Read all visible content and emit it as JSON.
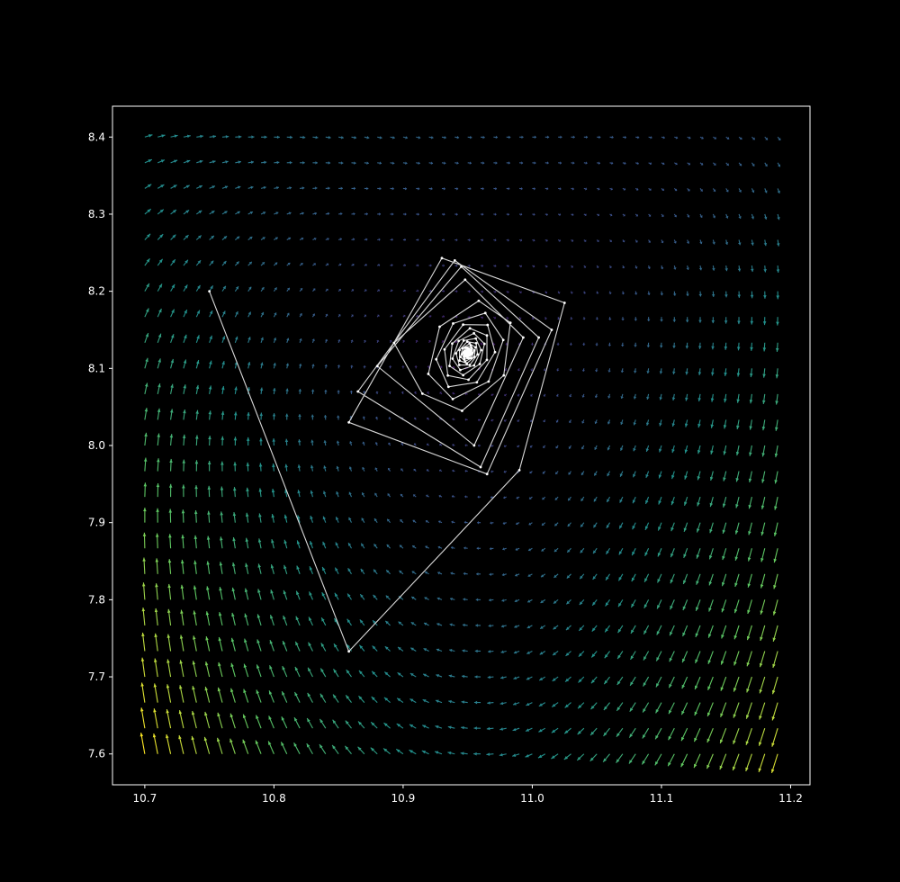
{
  "chart_data": {
    "type": "quiver",
    "background": "#000000",
    "axes_color": "#ffffff",
    "xlim": [
      10.675,
      11.215
    ],
    "ylim": [
      7.56,
      8.44
    ],
    "x_ticks": [
      {
        "value": 10.7,
        "label": "10.7"
      },
      {
        "value": 10.8,
        "label": "10.8"
      },
      {
        "value": 10.9,
        "label": "10.9"
      },
      {
        "value": 11.0,
        "label": "11.0"
      },
      {
        "value": 11.1,
        "label": "11.1"
      },
      {
        "value": 11.2,
        "label": "11.2"
      }
    ],
    "y_ticks": [
      {
        "value": 7.6,
        "label": "7.6"
      },
      {
        "value": 7.7,
        "label": "7.7"
      },
      {
        "value": 7.8,
        "label": "7.8"
      },
      {
        "value": 7.9,
        "label": "7.9"
      },
      {
        "value": 8.0,
        "label": "8.0"
      },
      {
        "value": 8.1,
        "label": "8.1"
      },
      {
        "value": 8.2,
        "label": "8.2"
      },
      {
        "value": 8.3,
        "label": "8.3"
      },
      {
        "value": 8.4,
        "label": "8.4"
      }
    ],
    "vector_field": {
      "x_range": [
        10.7,
        11.19
      ],
      "y_range": [
        7.6,
        8.4
      ],
      "nx": 50,
      "ny": 25,
      "equilibrium": [
        10.95,
        8.12
      ],
      "colormap": "viridis",
      "colormap_stops": [
        "#440154",
        "#3b528b",
        "#21918c",
        "#5ec962",
        "#fde725"
      ]
    },
    "trajectory": {
      "color": "#d9d9d9",
      "points": [
        [
          10.75,
          8.2
        ],
        [
          10.858,
          7.733
        ],
        [
          10.99,
          7.968
        ],
        [
          11.025,
          8.185
        ],
        [
          10.93,
          8.243
        ],
        [
          10.858,
          8.03
        ],
        [
          10.965,
          7.963
        ],
        [
          11.015,
          8.15
        ],
        [
          10.94,
          8.24
        ],
        [
          10.865,
          8.07
        ],
        [
          10.96,
          7.972
        ],
        [
          11.005,
          8.14
        ],
        [
          10.945,
          8.232
        ],
        [
          10.88,
          8.103
        ],
        [
          10.955,
          8.0
        ],
        [
          10.993,
          8.14
        ],
        [
          10.948,
          8.215
        ],
        [
          10.893,
          8.133
        ]
      ],
      "spiral_center": [
        10.95,
        8.12
      ],
      "spiral_rotation_step": 1.0,
      "spiral_decay": 0.962,
      "spiral_steps": 140,
      "spiral_start_radius": [
        0.043,
        0.095
      ]
    }
  }
}
